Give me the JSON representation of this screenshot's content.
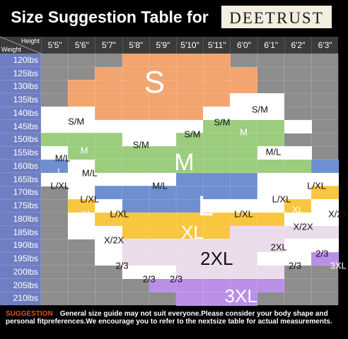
{
  "header": {
    "title": "Size Suggestion Table for",
    "brand": "DEETRUST"
  },
  "corner": {
    "height_label": "Height",
    "weight_label": "Weight"
  },
  "colors": {
    "background": "#000000",
    "grid_gray": "#8d8d8d",
    "header_row": "#3b3b3b",
    "weight_column": "#6f7ec2",
    "S": "#f2a56f",
    "S/M": "#ffffff",
    "M": "#9ccc7e",
    "M/L": "#ffffff",
    "L": "#6e8fd0",
    "L/XL": "#ffffff",
    "XL": "#f9c63f",
    "X/2X": "#ffffff",
    "2XL": "#ebdcec",
    "2/3": "#ffffff",
    "3XL": "#b98fe8",
    "suggestion_title": "#e0531a"
  },
  "chart_data": {
    "type": "table",
    "xlabel": "Height",
    "ylabel": "Weight",
    "heights": [
      "5'5\"",
      "5'6\"",
      "5'7\"",
      "5'8\"",
      "5'9\"",
      "5'10\"",
      "5'11\"",
      "6'0\"",
      "6'1\"",
      "6'2\"",
      "6'3\""
    ],
    "weights": [
      "120lbs",
      "125lbs",
      "130lbs",
      "135lbs",
      "140lbs",
      "145lbs",
      "150lbs",
      "155lbs",
      "160lbs",
      "165lbs",
      "170lbs",
      "175lbs",
      "180lbs",
      "185lbs",
      "190lbs",
      "195lbs",
      "200lbs",
      "205lbs",
      "210lbs"
    ],
    "grid": [
      [
        "",
        "",
        "",
        "S",
        "S",
        "S",
        "S",
        "",
        "",
        "",
        ""
      ],
      [
        "",
        "",
        "S",
        "S",
        "S",
        "S",
        "S",
        "S",
        "",
        "",
        ""
      ],
      [
        "",
        "S",
        "S",
        "S",
        "S",
        "S",
        "S",
        "S",
        "",
        "",
        ""
      ],
      [
        "",
        "S",
        "S",
        "S",
        "S",
        "S",
        "S",
        "S/M",
        "S/M",
        "",
        ""
      ],
      [
        "S/M",
        "S/M",
        "S",
        "S",
        "S",
        "S",
        "S/M",
        "S/M",
        "S/M",
        "",
        ""
      ],
      [
        "S/M",
        "S/M",
        "S/M",
        "S/M",
        "S/M",
        "S/M",
        "M",
        "M",
        "M",
        "S/M",
        ""
      ],
      [
        "M",
        "M",
        "M",
        "S/M",
        "S/M",
        "M",
        "M",
        "M",
        "M",
        "",
        ""
      ],
      [
        "M/L",
        "M",
        "M",
        "M",
        "M",
        "M",
        "M",
        "M",
        "M/L",
        "M/L",
        ""
      ],
      [
        "L",
        "M/L",
        "M",
        "M",
        "M",
        "M",
        "M",
        "M",
        "M",
        "M",
        "L"
      ],
      [
        "L/XL",
        "M/L",
        "M/L",
        "M/L",
        "M/L",
        "L",
        "L",
        "L",
        "L/XL",
        "L/XL",
        "L/XL"
      ],
      [
        "",
        "L/XL",
        "L",
        "L",
        "L",
        "L",
        "L",
        "L",
        "L/XL",
        "L/XL",
        "XL"
      ],
      [
        "",
        "XL",
        "L/XL",
        "L",
        "L",
        "L",
        "L/XL",
        "L/XL",
        "L/XL",
        "XL",
        "X/2X"
      ],
      [
        "",
        "X/2X",
        "XL",
        "XL",
        "XL",
        "XL",
        "XL",
        "XL",
        "XL",
        "X/2X",
        "X/2X"
      ],
      [
        "",
        "X/2X",
        "X/2X",
        "XL",
        "XL",
        "XL",
        "XL",
        "2XL",
        "2XL",
        "2XL",
        "2XL"
      ],
      [
        "",
        "",
        "2/3",
        "2XL",
        "2XL",
        "2XL",
        "2XL",
        "2XL",
        "2XL",
        "2/3",
        "2/3"
      ],
      [
        "",
        "",
        "2/3",
        "2XL",
        "2XL",
        "2XL",
        "2XL",
        "2XL",
        "2/3",
        "2/3",
        "3XL"
      ],
      [
        "",
        "",
        "",
        "2/3",
        "2/3",
        "2XL",
        "2XL",
        "2XL",
        "2XL",
        "",
        ""
      ],
      [
        "",
        "",
        "",
        "",
        "3XL",
        "3XL",
        "3XL",
        "3XL",
        "3XL",
        "",
        ""
      ],
      [
        "",
        "",
        "",
        "",
        "",
        "3XL",
        "3XL",
        "3XL",
        "",
        "",
        ""
      ]
    ],
    "labels": [
      {
        "text": "S",
        "row": 1.7,
        "col": 3.7,
        "size": 44
      },
      {
        "text": "S/M",
        "row": 3.7,
        "col": 7.6,
        "size": 13
      },
      {
        "text": "S/M",
        "row": 4.6,
        "col": 0.8,
        "size": 13
      },
      {
        "text": "S/M",
        "row": 4.7,
        "col": 6.2,
        "size": 13
      },
      {
        "text": "M",
        "row": 5.4,
        "col": 7.0,
        "size": 13
      },
      {
        "text": "S/M",
        "row": 5.6,
        "col": 5.1,
        "size": 13
      },
      {
        "text": "S/M",
        "row": 6.4,
        "col": 3.2,
        "size": 13
      },
      {
        "text": "M",
        "row": 6.8,
        "col": 1.1,
        "size": 13
      },
      {
        "text": "M/L",
        "row": 6.9,
        "col": 8.1,
        "size": 13
      },
      {
        "text": "M/L",
        "row": 7.4,
        "col": 0.3,
        "size": 13
      },
      {
        "text": "M",
        "row": 7.7,
        "col": 4.8,
        "size": 34
      },
      {
        "text": "L",
        "row": 8.4,
        "col": 0.2,
        "size": 13
      },
      {
        "text": "M/L",
        "row": 8.5,
        "col": 1.3,
        "size": 13
      },
      {
        "text": "L/XL",
        "row": 9.5,
        "col": 0.2,
        "size": 13
      },
      {
        "text": "M/L",
        "row": 9.5,
        "col": 3.9,
        "size": 13
      },
      {
        "text": "L/XL",
        "row": 9.5,
        "col": 9.7,
        "size": 13
      },
      {
        "text": "L/XL",
        "row": 10.5,
        "col": 1.3,
        "size": 13
      },
      {
        "text": "L/XL",
        "row": 10.5,
        "col": 8.4,
        "size": 13
      },
      {
        "text": "L",
        "row": 11.0,
        "col": 5.6,
        "size": 40
      },
      {
        "text": "XL",
        "row": 11.3,
        "col": 9.0,
        "size": 13
      },
      {
        "text": "XL",
        "row": 11.6,
        "col": 1.2,
        "size": 13
      },
      {
        "text": "L/XL",
        "row": 11.6,
        "col": 2.4,
        "size": 13
      },
      {
        "text": "L/XL",
        "row": 11.6,
        "col": 7.0,
        "size": 13
      },
      {
        "text": "X/2X",
        "row": 11.6,
        "col": 10.5,
        "size": 13
      },
      {
        "text": "X/2X",
        "row": 12.6,
        "col": 9.2,
        "size": 13
      },
      {
        "text": "XL",
        "row": 13.0,
        "col": 5.1,
        "size": 26
      },
      {
        "text": "X/2X",
        "row": 13.6,
        "col": 2.2,
        "size": 13
      },
      {
        "text": "2XL",
        "row": 14.1,
        "col": 8.3,
        "size": 13
      },
      {
        "text": "2/3",
        "row": 14.6,
        "col": 9.9,
        "size": 13
      },
      {
        "text": "2XL",
        "row": 15.0,
        "col": 6.0,
        "size": 26
      },
      {
        "text": "2/3",
        "row": 15.5,
        "col": 2.5,
        "size": 13
      },
      {
        "text": "2/3",
        "row": 15.5,
        "col": 8.9,
        "size": 13
      },
      {
        "text": "3XL",
        "row": 15.5,
        "col": 10.5,
        "size": 13
      },
      {
        "text": "2/3",
        "row": 16.5,
        "col": 3.5,
        "size": 13
      },
      {
        "text": "2/3",
        "row": 16.5,
        "col": 4.5,
        "size": 13
      },
      {
        "text": "3XL",
        "row": 17.8,
        "col": 6.9,
        "size": 26
      }
    ]
  },
  "suggestion": {
    "title": "SUGGESTION",
    "text": "General size guide may not suit everyone.Please consider your body shape and personal fitpreferences.We encourage you to refer to the nextsize table for actual measurements."
  }
}
